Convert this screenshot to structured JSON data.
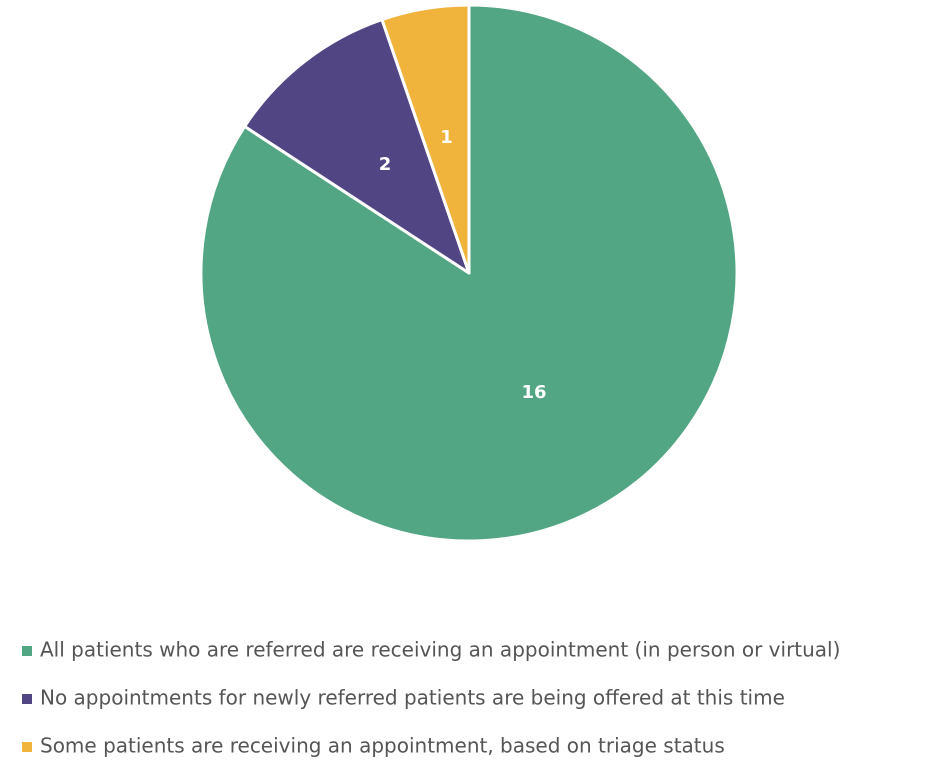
{
  "chart_data": {
    "type": "pie",
    "categories": [
      "All patients who are referred are receiving an appointment (in person or virtual)",
      "No appointments for newly referred patients are being offered at this time",
      "Some patients are receiving an appointment, based on triage status"
    ],
    "values": [
      16,
      2,
      1
    ],
    "colors": [
      "#52a684",
      "#514584",
      "#f0b43c"
    ],
    "legend": "bottom"
  }
}
